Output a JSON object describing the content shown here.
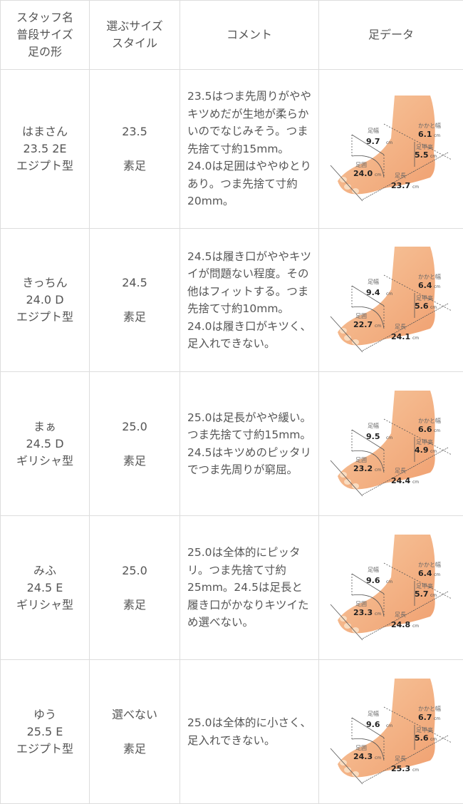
{
  "headers": {
    "col1": [
      "スタッフ名",
      "普段サイズ",
      "足の形"
    ],
    "col2": [
      "選ぶサイズ",
      "スタイル"
    ],
    "col3": "コメント",
    "col4": "足データ"
  },
  "labels": {
    "width": "足幅",
    "heel": "かかと幅",
    "instep": "足甲高",
    "girth": "足囲",
    "length": "足長",
    "unit": "cm"
  },
  "rows": [
    {
      "name": "はまさん",
      "size": "23.5 2E",
      "shape": "エジプト型",
      "choice": "23.5",
      "style": "素足",
      "comment": "23.5はつま先周りがややキツめだが生地が柔らかいのでなじみそう。つま先捨て寸約15mm。24.0は足囲はややゆとりあり。つま先捨て寸約20mm。",
      "foot": {
        "width": "9.7",
        "heel": "6.1",
        "instep": "5.5",
        "girth": "24.0",
        "length": "23.7"
      }
    },
    {
      "name": "きっちん",
      "size": "24.0 D",
      "shape": "エジプト型",
      "choice": "24.5",
      "style": "素足",
      "comment": "24.5は履き口がややキツイが問題ない程度。その他はフィットする。つま先捨て寸約10mm。24.0は履き口がキツく、足入れできない。",
      "foot": {
        "width": "9.4",
        "heel": "6.4",
        "instep": "5.6",
        "girth": "22.7",
        "length": "24.1"
      }
    },
    {
      "name": "まぁ",
      "size": "24.5 D",
      "shape": "ギリシャ型",
      "choice": "25.0",
      "style": "素足",
      "comment": "25.0は足長がやや緩い。つま先捨て寸約15mm。24.5はキツめのピッタリでつま先周りが窮屈。",
      "foot": {
        "width": "9.5",
        "heel": "6.6",
        "instep": "4.9",
        "girth": "23.2",
        "length": "24.4"
      }
    },
    {
      "name": "みふ",
      "size": "24.5 E",
      "shape": "ギリシャ型",
      "choice": "25.0",
      "style": "素足",
      "comment": "25.0は全体的にピッタリ。つま先捨て寸約25mm。24.5は足長と履き口がかなりキツイため選べない。",
      "foot": {
        "width": "9.6",
        "heel": "6.4",
        "instep": "5.7",
        "girth": "23.3",
        "length": "24.8"
      }
    },
    {
      "name": "ゆう",
      "size": "25.5 E",
      "shape": "エジプト型",
      "choice": "選べない",
      "style": "素足",
      "comment": "25.0は全体的に小さく、足入れできない。",
      "foot": {
        "width": "9.6",
        "heel": "6.7",
        "instep": "5.6",
        "girth": "24.3",
        "length": "25.3"
      }
    }
  ]
}
